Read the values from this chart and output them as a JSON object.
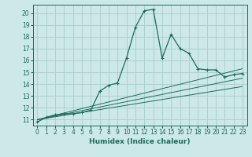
{
  "title": "",
  "xlabel": "Humidex (Indice chaleur)",
  "bg_color": "#cce8e8",
  "grid_color": "#aacccc",
  "line_color": "#1a6b5a",
  "xlim": [
    -0.5,
    23.5
  ],
  "ylim": [
    10.5,
    20.7
  ],
  "xticks": [
    0,
    1,
    2,
    3,
    4,
    5,
    6,
    7,
    8,
    9,
    10,
    11,
    12,
    13,
    14,
    15,
    16,
    17,
    18,
    19,
    20,
    21,
    22,
    23
  ],
  "yticks": [
    11,
    12,
    13,
    14,
    15,
    16,
    17,
    18,
    19,
    20
  ],
  "series": [
    [
      0,
      10.8
    ],
    [
      1,
      11.2
    ],
    [
      2,
      11.4
    ],
    [
      3,
      11.5
    ],
    [
      4,
      11.5
    ],
    [
      5,
      11.6
    ],
    [
      6,
      11.8
    ],
    [
      7,
      13.4
    ],
    [
      8,
      13.9
    ],
    [
      9,
      14.1
    ],
    [
      10,
      16.2
    ],
    [
      11,
      18.8
    ],
    [
      12,
      20.2
    ],
    [
      13,
      20.3
    ],
    [
      14,
      16.2
    ],
    [
      15,
      18.2
    ],
    [
      16,
      17.0
    ],
    [
      17,
      16.6
    ],
    [
      18,
      15.3
    ],
    [
      19,
      15.2
    ],
    [
      20,
      15.2
    ],
    [
      21,
      14.6
    ],
    [
      22,
      14.8
    ],
    [
      23,
      14.9
    ]
  ],
  "regression_lines": [
    {
      "x": [
        0,
        23
      ],
      "y": [
        11.0,
        15.3
      ]
    },
    {
      "x": [
        0,
        23
      ],
      "y": [
        11.0,
        14.5
      ]
    },
    {
      "x": [
        0,
        23
      ],
      "y": [
        11.0,
        13.8
      ]
    }
  ]
}
